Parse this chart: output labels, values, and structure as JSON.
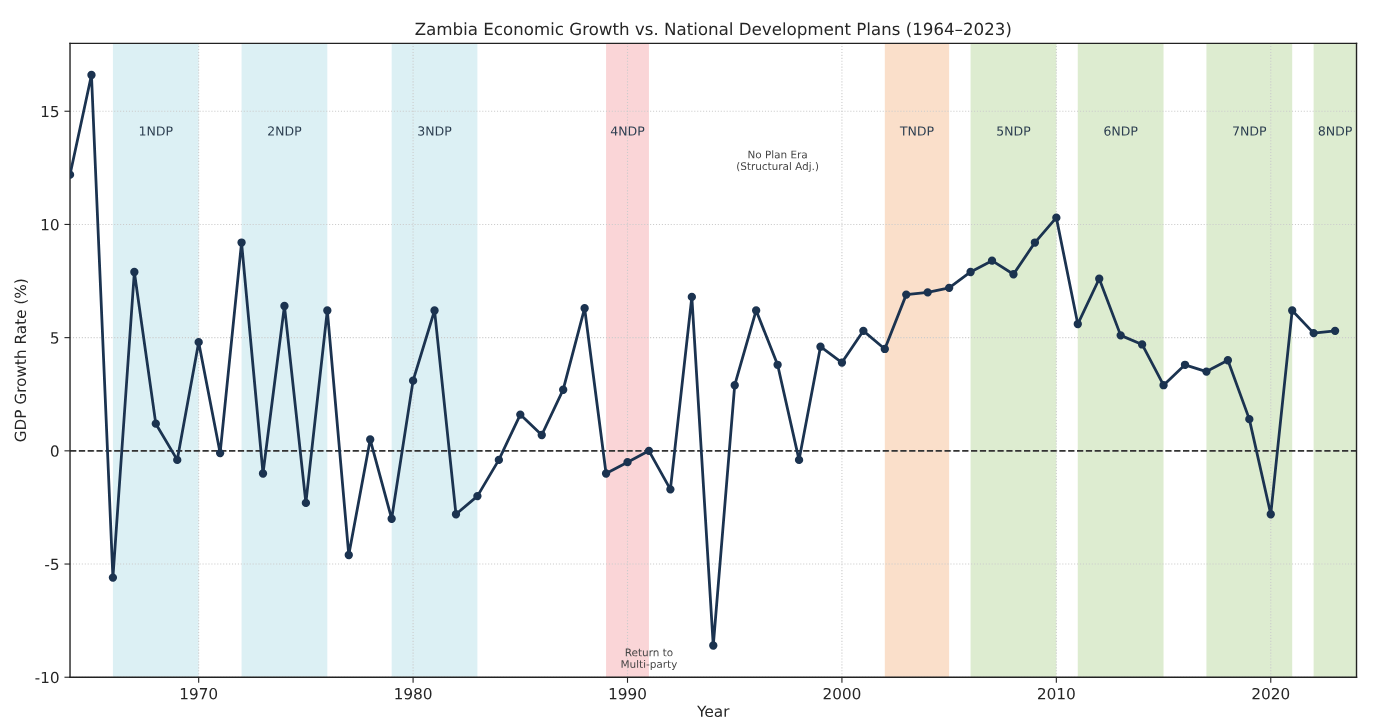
{
  "chart_data": {
    "type": "line",
    "title": "Zambia Economic Growth vs. National Development Plans (1964–2023)",
    "xlabel": "Year",
    "ylabel": "GDP Growth Rate (%)",
    "x": [
      1964,
      1965,
      1966,
      1967,
      1968,
      1969,
      1970,
      1971,
      1972,
      1973,
      1974,
      1975,
      1976,
      1977,
      1978,
      1979,
      1980,
      1981,
      1982,
      1983,
      1984,
      1985,
      1986,
      1987,
      1988,
      1989,
      1990,
      1991,
      1992,
      1993,
      1994,
      1995,
      1996,
      1997,
      1998,
      1999,
      2000,
      2001,
      2002,
      2003,
      2004,
      2005,
      2006,
      2007,
      2008,
      2009,
      2010,
      2011,
      2012,
      2013,
      2014,
      2015,
      2016,
      2017,
      2018,
      2019,
      2020,
      2021,
      2022,
      2023
    ],
    "series": [
      {
        "color": "#1b3350",
        "values": [
          12.2,
          16.6,
          -5.6,
          7.9,
          1.2,
          -0.4,
          4.8,
          -0.1,
          9.2,
          -1.0,
          6.4,
          -2.3,
          6.2,
          -4.6,
          0.5,
          -3.0,
          3.1,
          6.2,
          -2.8,
          -2.0,
          -0.4,
          1.6,
          0.7,
          2.7,
          6.3,
          -1.0,
          -0.5,
          0.0,
          -1.7,
          6.8,
          -8.6,
          2.9,
          6.2,
          3.8,
          -0.4,
          4.6,
          3.9,
          5.3,
          4.5,
          6.9,
          7.0,
          7.2,
          7.9,
          8.4,
          7.8,
          9.2,
          10.3,
          5.6,
          7.6,
          5.1,
          4.7,
          2.9,
          3.8,
          3.5,
          4.0,
          1.4,
          -2.8,
          6.2,
          5.2,
          5.3
        ]
      }
    ],
    "xlim": [
      1964,
      2024
    ],
    "xticks": [
      1970,
      1980,
      1990,
      2000,
      2010,
      2020
    ],
    "ylim": [
      -10,
      18
    ],
    "yticks": [
      -10,
      -5,
      0,
      5,
      10,
      15
    ],
    "grid": true,
    "marker": "circle",
    "line_style": "solid",
    "ref_lines": [
      {
        "axis": "y",
        "value": 0,
        "color": "#333333",
        "line_style": "dashed"
      }
    ],
    "bands": [
      {
        "axis": "x",
        "from": 1966,
        "to": 1970,
        "label": "1NDP",
        "color": "#c5e6ec"
      },
      {
        "axis": "x",
        "from": 1972,
        "to": 1976,
        "label": "2NDP",
        "color": "#c5e6ec"
      },
      {
        "axis": "x",
        "from": 1979,
        "to": 1983,
        "label": "3NDP",
        "color": "#c5e6ec"
      },
      {
        "axis": "x",
        "from": 1989,
        "to": 1991,
        "label": "4NDP",
        "color": "#f7b9bd"
      },
      {
        "axis": "x",
        "from": 2002,
        "to": 2005,
        "label": "TNDP",
        "color": "#f6caa6"
      },
      {
        "axis": "x",
        "from": 2006,
        "to": 2010,
        "label": "5NDP",
        "color": "#c6dfb0"
      },
      {
        "axis": "x",
        "from": 2011,
        "to": 2015,
        "label": "6NDP",
        "color": "#c6dfb0"
      },
      {
        "axis": "x",
        "from": 2017,
        "to": 2021,
        "label": "7NDP",
        "color": "#c6dfb0"
      },
      {
        "axis": "x",
        "from": 2022,
        "to": 2024,
        "label": "8NDP",
        "color": "#c6dfb0"
      }
    ],
    "annotations": [
      "No Plan Era\n(Structural Adj.)",
      {
        "text": "Return to\nMulti-party",
        "x": 1991,
        "y": -9.2
      }
    ]
  }
}
